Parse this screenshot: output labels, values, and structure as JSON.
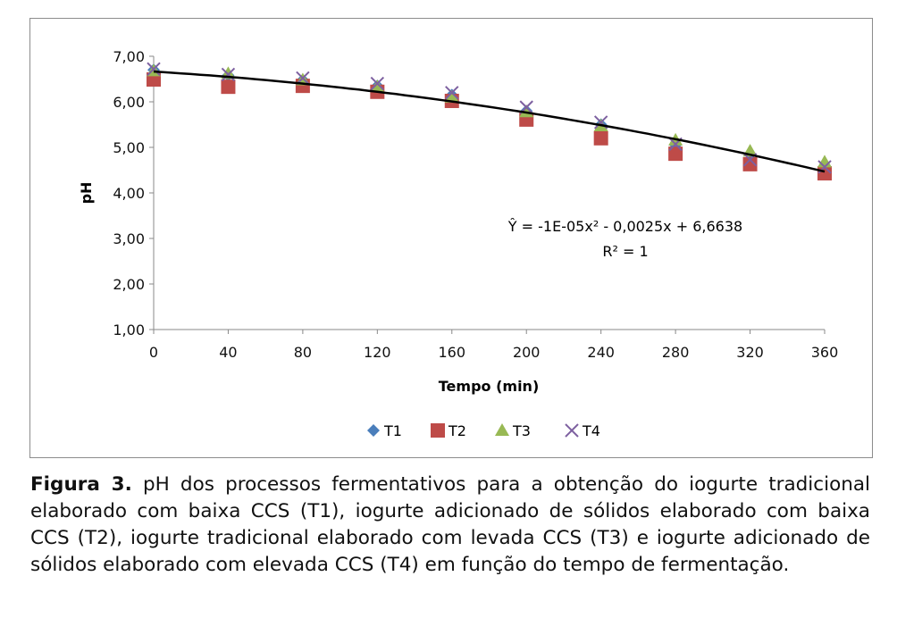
{
  "chart_data": {
    "type": "scatter",
    "xlabel": "Tempo (min)",
    "ylabel": "pH",
    "xlim": [
      0,
      360
    ],
    "ylim": [
      1,
      7
    ],
    "x_ticks": [
      "0",
      "40",
      "80",
      "120",
      "160",
      "200",
      "240",
      "280",
      "320",
      "360"
    ],
    "y_ticks": [
      "1,00",
      "2,00",
      "3,00",
      "4,00",
      "5,00",
      "6,00",
      "7,00"
    ],
    "x": [
      0,
      40,
      80,
      120,
      160,
      200,
      240,
      280,
      320,
      360
    ],
    "series": [
      {
        "name": "T1",
        "marker": "diamond",
        "color": "#4a7ebb",
        "values": [
          6.7,
          6.58,
          6.48,
          6.35,
          6.15,
          5.8,
          5.5,
          5.05,
          4.7,
          4.55
        ]
      },
      {
        "name": "T2",
        "marker": "square",
        "color": "#be4b48",
        "values": [
          6.49,
          6.33,
          6.35,
          6.22,
          6.02,
          5.61,
          5.2,
          4.86,
          4.63,
          4.43
        ]
      },
      {
        "name": "T3",
        "marker": "triangle",
        "color": "#98b954",
        "values": [
          6.68,
          6.62,
          6.48,
          6.33,
          6.1,
          5.78,
          5.47,
          5.16,
          4.92,
          4.68
        ]
      },
      {
        "name": "T4",
        "marker": "x",
        "color": "#7d60a0",
        "values": [
          6.72,
          6.6,
          6.52,
          6.4,
          6.2,
          5.88,
          5.55,
          5.07,
          4.73,
          4.57
        ]
      }
    ],
    "trendline": {
      "coefficients": [
        -1e-05,
        -0.0025,
        6.6638
      ],
      "equation": "Ŷ = -1E-05x² - 0,0025x + 6,6638",
      "r2": "R² = 1"
    },
    "legend_position": "bottom",
    "grid": false
  },
  "caption": {
    "label": "Figura 3.",
    "text": " pH dos processos fermentativos para a obtenção do iogurte tradicional elaborado com baixa CCS (T1), iogurte adicionado de sólidos elaborado com baixa CCS (T2), iogurte tradicional elaborado com  levada CCS (T3) e iogurte adicionado de sólidos elaborado com elevada CCS (T4) em função do tempo de fermentação."
  }
}
